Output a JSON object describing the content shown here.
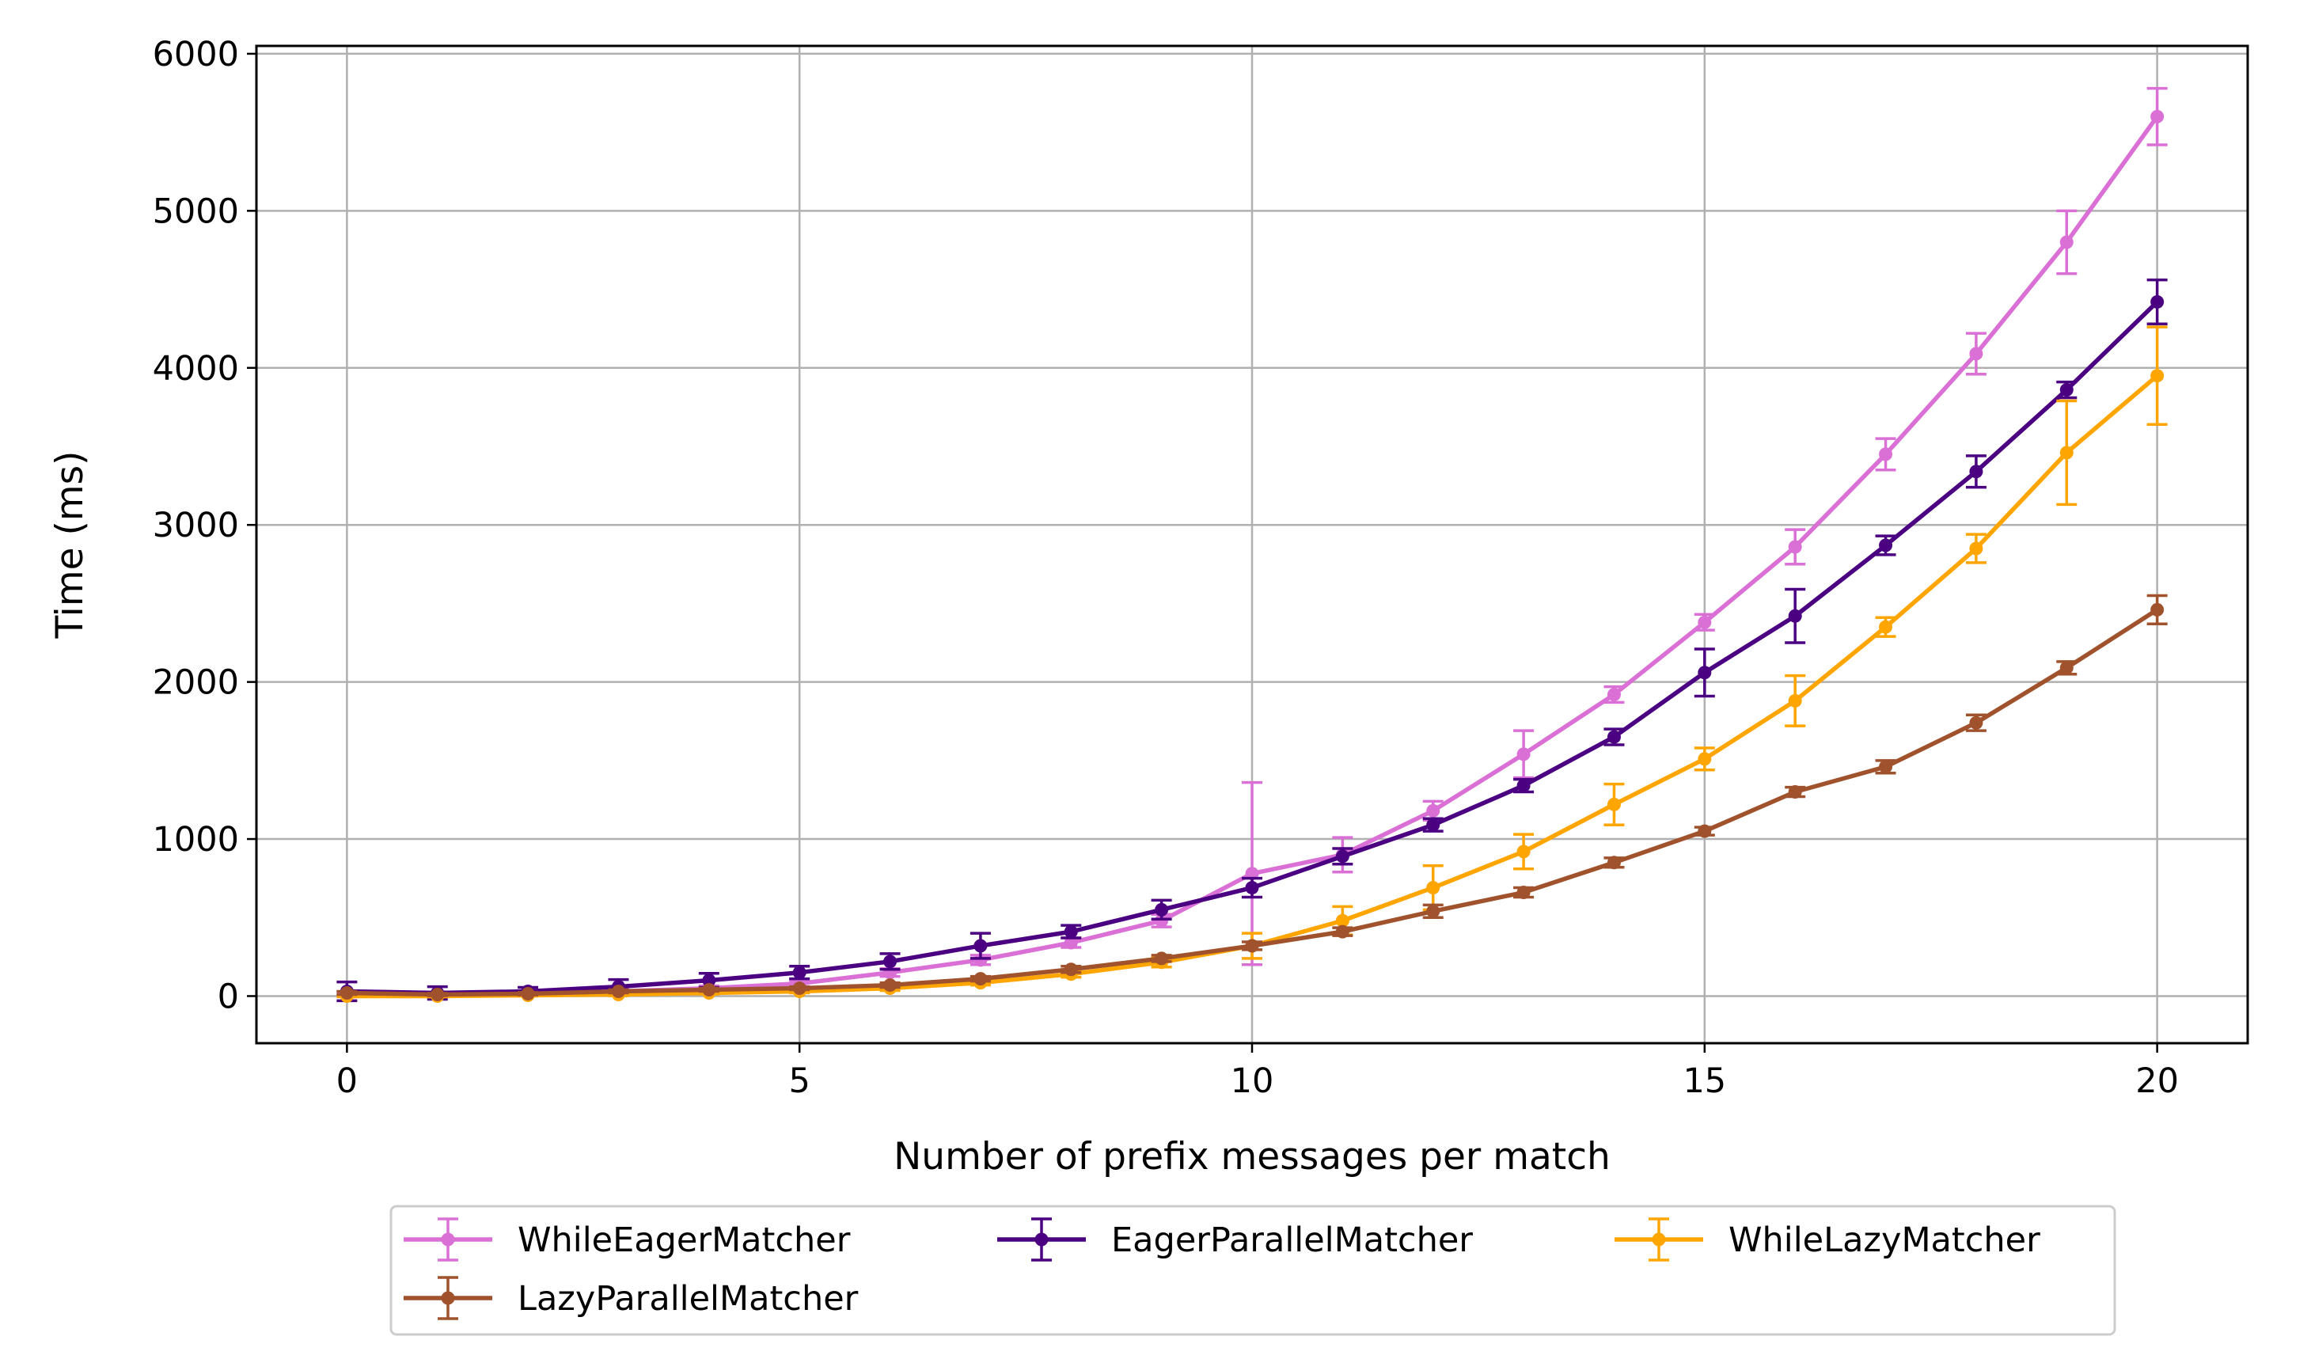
{
  "chart_data": {
    "type": "line",
    "title": "",
    "xlabel": "Number of prefix messages per match",
    "ylabel": "Time (ms)",
    "xlim": [
      -1,
      21
    ],
    "ylim": [
      -300,
      6050
    ],
    "xticks": [
      0,
      5,
      10,
      15,
      20
    ],
    "xtick_labels": [
      "0",
      "5",
      "10",
      "15",
      "20"
    ],
    "yticks": [
      0,
      1000,
      2000,
      3000,
      4000,
      5000,
      6000
    ],
    "ytick_labels": [
      "0",
      "1000",
      "2000",
      "3000",
      "4000",
      "5000",
      "6000"
    ],
    "grid": true,
    "legend_position": "bottom-center outside",
    "error_bars": true,
    "x": [
      0,
      1,
      2,
      3,
      4,
      5,
      6,
      7,
      8,
      9,
      10,
      11,
      12,
      13,
      14,
      15,
      16,
      17,
      18,
      19,
      20
    ],
    "series": [
      {
        "name": "WhileEagerMatcher",
        "color": "#da70d6",
        "values": [
          15,
          10,
          15,
          30,
          50,
          80,
          150,
          230,
          340,
          480,
          780,
          900,
          1180,
          1540,
          1920,
          2380,
          2860,
          3450,
          4090,
          4800,
          5600
        ],
        "errors": [
          10,
          8,
          10,
          15,
          15,
          20,
          25,
          30,
          30,
          40,
          580,
          110,
          60,
          150,
          50,
          50,
          110,
          100,
          130,
          200,
          180
        ]
      },
      {
        "name": "EagerParallelMatcher",
        "color": "#4b0082",
        "values": [
          30,
          20,
          30,
          60,
          100,
          150,
          220,
          320,
          410,
          550,
          690,
          890,
          1090,
          1340,
          1650,
          2060,
          2420,
          2870,
          3340,
          3860,
          4420
        ],
        "errors": [
          60,
          40,
          25,
          45,
          45,
          40,
          50,
          80,
          40,
          60,
          60,
          50,
          40,
          40,
          50,
          150,
          170,
          60,
          100,
          50,
          140
        ]
      },
      {
        "name": "WhileLazyMatcher",
        "color": "#ffa500",
        "values": [
          0,
          0,
          5,
          10,
          20,
          30,
          50,
          85,
          140,
          215,
          320,
          480,
          690,
          920,
          1220,
          1510,
          1880,
          2350,
          2850,
          3460,
          3950
        ],
        "errors": [
          5,
          5,
          5,
          8,
          8,
          10,
          15,
          15,
          20,
          30,
          80,
          90,
          140,
          110,
          130,
          70,
          160,
          60,
          90,
          330,
          310
        ]
      },
      {
        "name": "LazyParallelMatcher",
        "color": "#a0522d",
        "values": [
          20,
          10,
          15,
          30,
          40,
          50,
          70,
          110,
          170,
          240,
          320,
          410,
          540,
          660,
          850,
          1050,
          1300,
          1460,
          1740,
          2090,
          2460
        ],
        "errors": [
          10,
          8,
          8,
          10,
          10,
          10,
          15,
          15,
          20,
          20,
          25,
          25,
          40,
          30,
          30,
          25,
          30,
          40,
          50,
          40,
          90
        ]
      }
    ],
    "legend_order": [
      {
        "series": 0,
        "col": 0,
        "row": 0
      },
      {
        "series": 3,
        "col": 0,
        "row": 1
      },
      {
        "series": 1,
        "col": 1,
        "row": 0
      },
      {
        "series": 2,
        "col": 2,
        "row": 0
      }
    ]
  }
}
